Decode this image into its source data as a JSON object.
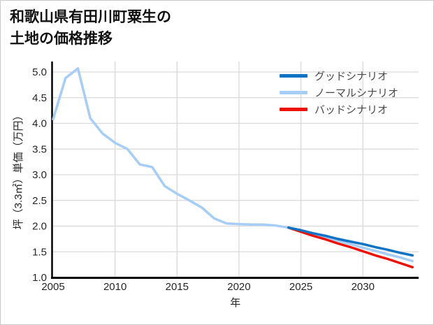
{
  "figure": {
    "background": "#ffffff",
    "border_color": "#c9c9c9",
    "grid_color": "#d9d9d9",
    "spine_color": "#000000",
    "tick_text_color": "#262626",
    "legend_text_color": "#4a4a4a"
  },
  "title": {
    "line1": "和歌山県有田川町粟生の",
    "line2": "土地の価格推移"
  },
  "chart_data": {
    "type": "line",
    "title": "和歌山県有田川町粟生の土地の価格推移",
    "xlabel": "年",
    "ylabel": "坪（3.3㎡）単価（万円）",
    "x_ticks": [
      2005,
      2010,
      2015,
      2020,
      2025,
      2030
    ],
    "y_tick_labels": [
      "1.0",
      "1.5",
      "2.0",
      "2.5",
      "3.0",
      "3.5",
      "4.0",
      "4.5",
      "5.0"
    ],
    "xlim": [
      2005,
      2034.5
    ],
    "ylim": [
      1.0,
      5.2
    ],
    "grid": true,
    "legend_position": "upper-right",
    "series": [
      {
        "name": "グッドシナリオ",
        "color": "#0e72c5",
        "x": [
          2024,
          2025,
          2026,
          2027,
          2028,
          2029,
          2030,
          2031,
          2032,
          2033,
          2034
        ],
        "values": [
          1.97,
          1.92,
          1.86,
          1.81,
          1.75,
          1.7,
          1.65,
          1.59,
          1.54,
          1.48,
          1.43
        ]
      },
      {
        "name": "ノーマルシナリオ",
        "color": "#a6cdf5",
        "x": [
          2005,
          2006,
          2007,
          2008,
          2009,
          2010,
          2011,
          2012,
          2013,
          2014,
          2015,
          2016,
          2017,
          2018,
          2019,
          2020,
          2021,
          2022,
          2023,
          2024,
          2025,
          2026,
          2027,
          2028,
          2029,
          2030,
          2031,
          2032,
          2033,
          2034
        ],
        "values": [
          4.08,
          4.88,
          5.07,
          4.1,
          3.8,
          3.62,
          3.5,
          3.2,
          3.15,
          2.78,
          2.63,
          2.5,
          2.36,
          2.15,
          2.05,
          2.04,
          2.03,
          2.03,
          2.01,
          1.97,
          1.91,
          1.84,
          1.78,
          1.71,
          1.65,
          1.58,
          1.52,
          1.45,
          1.39,
          1.32
        ]
      },
      {
        "name": "バッドシナリオ",
        "color": "#ee1100",
        "x": [
          2024,
          2025,
          2026,
          2027,
          2028,
          2029,
          2030,
          2031,
          2032,
          2033,
          2034
        ],
        "values": [
          1.97,
          1.89,
          1.81,
          1.74,
          1.66,
          1.59,
          1.51,
          1.43,
          1.36,
          1.28,
          1.2
        ]
      }
    ]
  }
}
